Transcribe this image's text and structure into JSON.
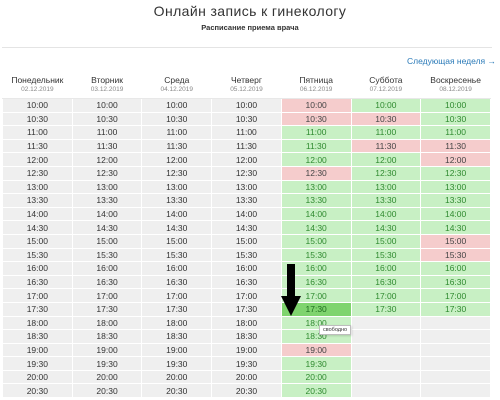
{
  "page": {
    "title": "Онлайн запись к гинекологу",
    "subtitle": "Расписание приема врача",
    "next_week_label": "Следующая неделя →"
  },
  "colors": {
    "free": "#c8f0c4",
    "busy": "#f5cccc",
    "past": "#efefef",
    "link": "#2a7ab8"
  },
  "schedule": {
    "days": [
      {
        "name": "Понедельник",
        "date": "02.12.2019"
      },
      {
        "name": "Вторник",
        "date": "03.12.2019"
      },
      {
        "name": "Среда",
        "date": "04.12.2019"
      },
      {
        "name": "Четверг",
        "date": "05.12.2019"
      },
      {
        "name": "Пятница",
        "date": "06.12.2019"
      },
      {
        "name": "Суббота",
        "date": "07.12.2019"
      },
      {
        "name": "Воскресенье",
        "date": "08.12.2019"
      }
    ],
    "rows": [
      {
        "time": "10:00",
        "status": [
          "past",
          "past",
          "past",
          "past",
          "busy",
          "free",
          "free"
        ]
      },
      {
        "time": "10:30",
        "status": [
          "past",
          "past",
          "past",
          "past",
          "busy",
          "busy",
          "free"
        ]
      },
      {
        "time": "11:00",
        "status": [
          "past",
          "past",
          "past",
          "past",
          "free",
          "free",
          "free"
        ]
      },
      {
        "time": "11:30",
        "status": [
          "past",
          "past",
          "past",
          "past",
          "free",
          "busy",
          "busy"
        ]
      },
      {
        "time": "12:00",
        "status": [
          "past",
          "past",
          "past",
          "past",
          "free",
          "free",
          "busy"
        ]
      },
      {
        "time": "12:30",
        "status": [
          "past",
          "past",
          "past",
          "past",
          "busy",
          "free",
          "free"
        ]
      },
      {
        "time": "13:00",
        "status": [
          "past",
          "past",
          "past",
          "past",
          "free",
          "free",
          "free"
        ]
      },
      {
        "time": "13:30",
        "status": [
          "past",
          "past",
          "past",
          "past",
          "free",
          "free",
          "free"
        ]
      },
      {
        "time": "14:00",
        "status": [
          "past",
          "past",
          "past",
          "past",
          "free",
          "free",
          "free"
        ]
      },
      {
        "time": "14:30",
        "status": [
          "past",
          "past",
          "past",
          "past",
          "free",
          "free",
          "free"
        ]
      },
      {
        "time": "15:00",
        "status": [
          "past",
          "past",
          "past",
          "past",
          "free",
          "free",
          "busy"
        ]
      },
      {
        "time": "15:30",
        "status": [
          "past",
          "past",
          "past",
          "past",
          "free",
          "free",
          "busy"
        ]
      },
      {
        "time": "16:00",
        "status": [
          "past",
          "past",
          "past",
          "past",
          "free",
          "free",
          "free"
        ]
      },
      {
        "time": "16:30",
        "status": [
          "past",
          "past",
          "past",
          "past",
          "free",
          "free",
          "free"
        ]
      },
      {
        "time": "17:00",
        "status": [
          "past",
          "past",
          "past",
          "past",
          "free",
          "free",
          "free"
        ]
      },
      {
        "time": "17:30",
        "status": [
          "past",
          "past",
          "past",
          "past",
          "hl",
          "free",
          "free"
        ]
      },
      {
        "time": "18:00",
        "status": [
          "past",
          "past",
          "past",
          "past",
          "free",
          "empty",
          "empty"
        ]
      },
      {
        "time": "18:30",
        "status": [
          "past",
          "past",
          "past",
          "past",
          "free",
          "empty",
          "empty"
        ]
      },
      {
        "time": "19:00",
        "status": [
          "past",
          "past",
          "past",
          "past",
          "busy",
          "empty",
          "empty"
        ]
      },
      {
        "time": "19:30",
        "status": [
          "past",
          "past",
          "past",
          "past",
          "free",
          "empty",
          "empty"
        ]
      },
      {
        "time": "20:00",
        "status": [
          "past",
          "past",
          "past",
          "past",
          "free",
          "empty",
          "empty"
        ]
      },
      {
        "time": "20:30",
        "status": [
          "past",
          "past",
          "past",
          "past",
          "free",
          "empty",
          "empty"
        ]
      }
    ]
  },
  "tooltip": {
    "text": "свободно"
  },
  "icons": {
    "arrow": "down-arrow-icon"
  }
}
